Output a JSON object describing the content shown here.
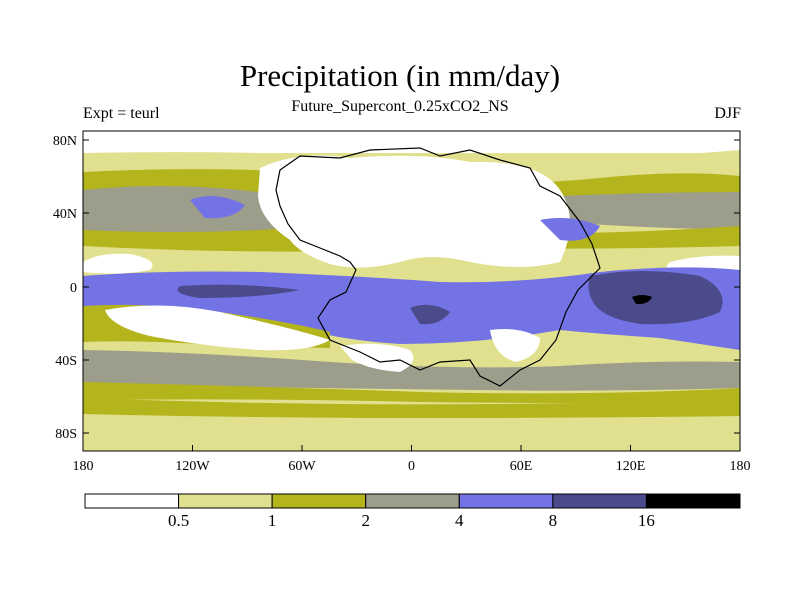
{
  "title": "Precipitation (in mm/day)",
  "subtitle": "Future_Supercont_0.25xCO2_NS",
  "left_label": "Expt = teurl",
  "right_label": "DJF",
  "x_ticks": [
    "180",
    "120W",
    "60W",
    "0",
    "60E",
    "120E",
    "180"
  ],
  "y_ticks": [
    "80N",
    "40N",
    "0",
    "40S",
    "80S"
  ],
  "colorbar": {
    "levels": [
      "0.5",
      "1",
      "2",
      "4",
      "8",
      "16"
    ],
    "colors": [
      "#ffffff",
      "#e0e08f",
      "#b4b41c",
      "#9d9d8b",
      "#7373e6",
      "#4b4b8c",
      "#000000"
    ]
  }
}
